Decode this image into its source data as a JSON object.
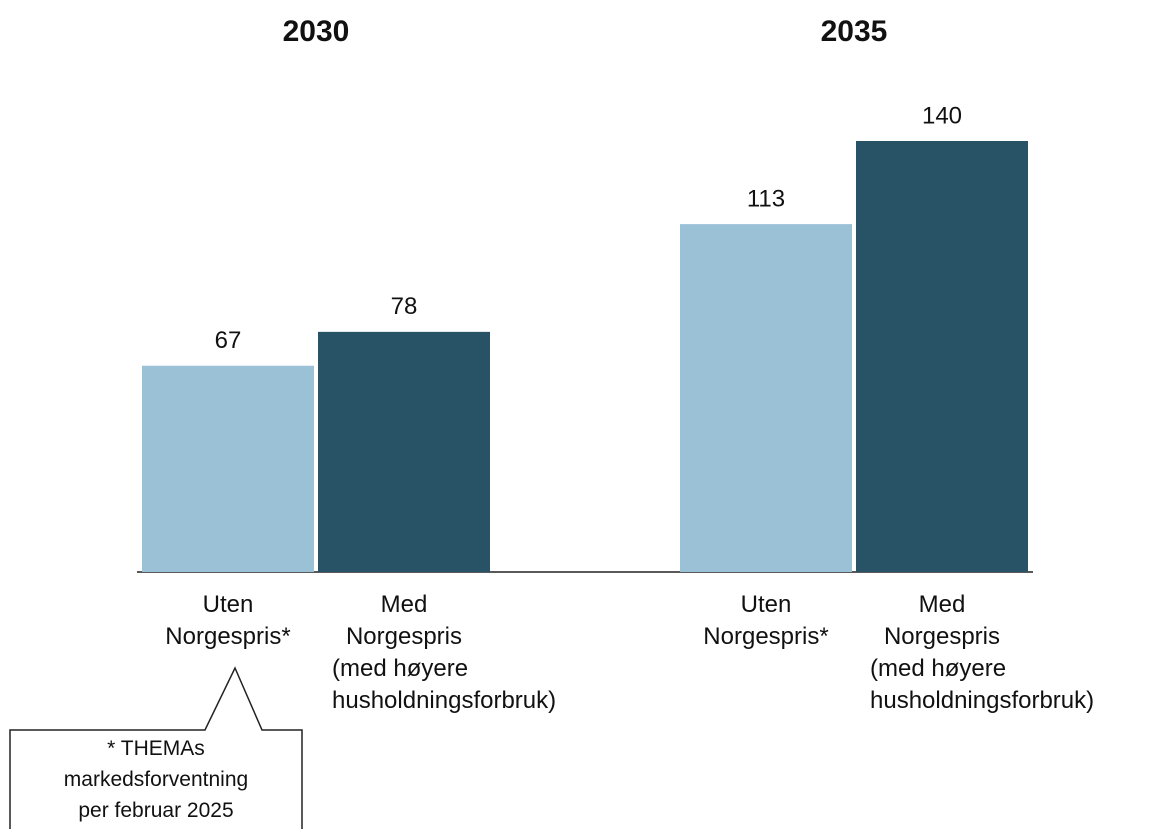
{
  "chart_data": {
    "type": "bar",
    "categories": [
      "2030",
      "2035"
    ],
    "series": [
      {
        "name": "Uten Norgespris*",
        "color": "#9bc1d7",
        "values": [
          67,
          113
        ]
      },
      {
        "name": "Med Norgespris",
        "note": "(med høyere husholdningsforbruk)",
        "color": "#285266",
        "values": [
          78,
          140
        ]
      }
    ],
    "annotation": [
      "* THEMAs",
      "markedsforventning",
      "per februar 2025"
    ]
  }
}
